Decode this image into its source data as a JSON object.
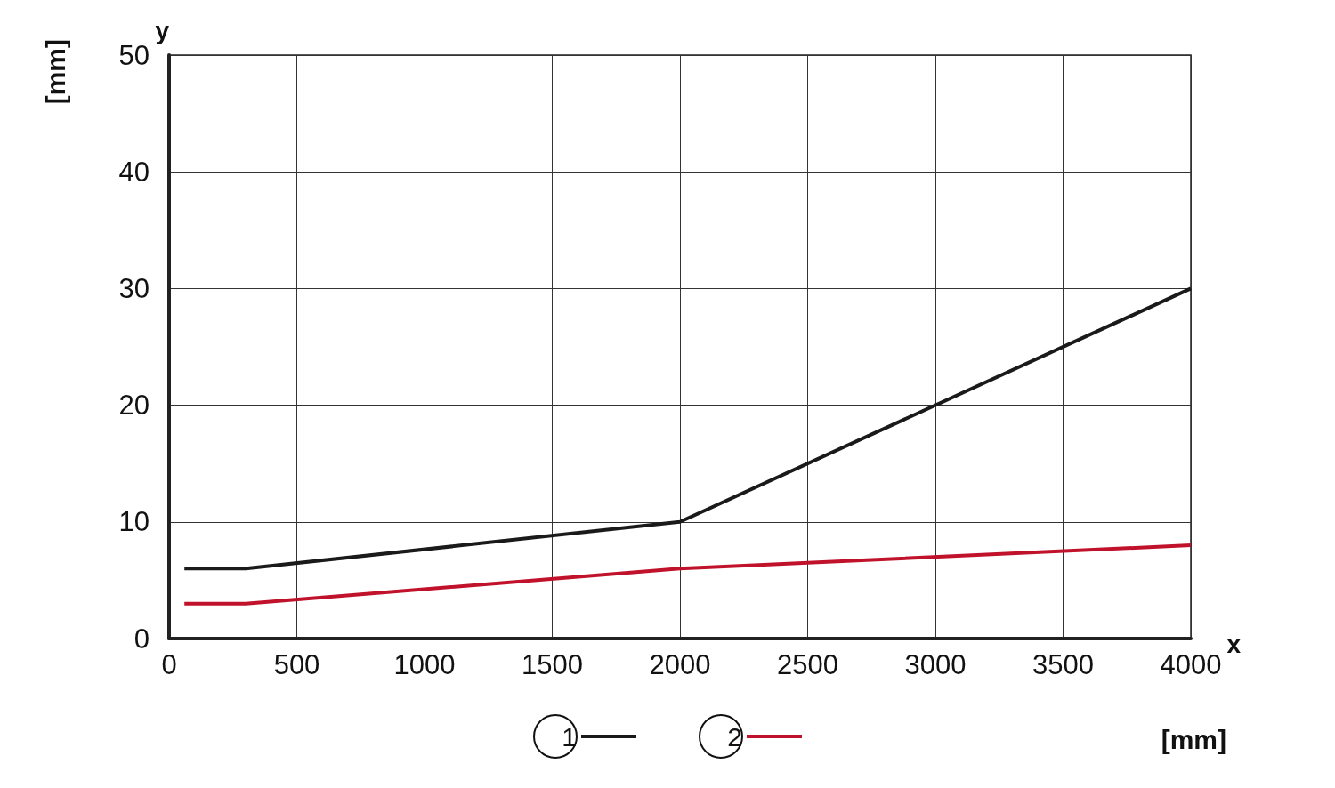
{
  "chart_data": {
    "type": "line",
    "xlabel": "x",
    "ylabel": "y",
    "annotations": [
      "[mm]",
      "[mm]"
    ],
    "series": [
      {
        "name": "1",
        "color": "#1a1a1a",
        "x": [
          60,
          300,
          2000,
          4000
        ],
        "values": [
          6,
          6,
          10,
          30
        ]
      },
      {
        "name": "2",
        "color": "#c0122a",
        "x": [
          60,
          300,
          2000,
          4000
        ],
        "values": [
          3,
          3,
          6,
          8
        ]
      }
    ],
    "xlim": [
      0,
      4000
    ],
    "xticks": [
      0,
      500,
      1000,
      1500,
      2000,
      2500,
      3000,
      3500,
      4000
    ],
    "ylim": [
      0,
      50
    ],
    "yticks": [
      0,
      10,
      20,
      30,
      40,
      50
    ],
    "grid": true,
    "legend": "bottom",
    "marker": "none",
    "line_style": "solid"
  }
}
